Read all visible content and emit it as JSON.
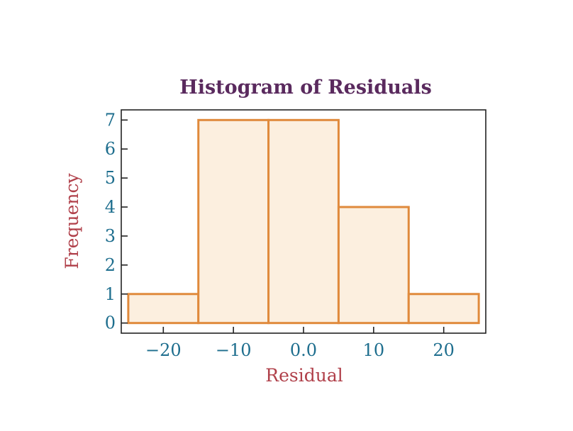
{
  "colors": {
    "title": "#5a2a5e",
    "axis_label": "#b0404a",
    "tick_label": "#1e6e8e",
    "bar_fill": "#fcefdf",
    "bar_stroke": "#e08a3c",
    "frame": "#222222"
  },
  "chart_data": {
    "type": "bar",
    "title": "Histogram of Residuals",
    "xlabel": "Residual",
    "ylabel": "Frequency",
    "bins": [
      {
        "start": -25,
        "end": -15,
        "count": 1
      },
      {
        "start": -15,
        "end": -5,
        "count": 7
      },
      {
        "start": -5,
        "end": 5,
        "count": 7
      },
      {
        "start": 5,
        "end": 15,
        "count": 4
      },
      {
        "start": 15,
        "end": 25,
        "count": 1
      }
    ],
    "xlim": [
      -26,
      26
    ],
    "ylim": [
      -0.35,
      7.35
    ],
    "x_ticks": [
      {
        "value": -20,
        "label": "−20"
      },
      {
        "value": -10,
        "label": "−10"
      },
      {
        "value": 0,
        "label": "0.0"
      },
      {
        "value": 10,
        "label": "10"
      },
      {
        "value": 20,
        "label": "20"
      }
    ],
    "y_ticks": [
      {
        "value": 0,
        "label": "0"
      },
      {
        "value": 1,
        "label": "1"
      },
      {
        "value": 2,
        "label": "2"
      },
      {
        "value": 3,
        "label": "3"
      },
      {
        "value": 4,
        "label": "4"
      },
      {
        "value": 5,
        "label": "5"
      },
      {
        "value": 6,
        "label": "6"
      },
      {
        "value": 7,
        "label": "7"
      }
    ],
    "grid": false,
    "legend": "none"
  }
}
